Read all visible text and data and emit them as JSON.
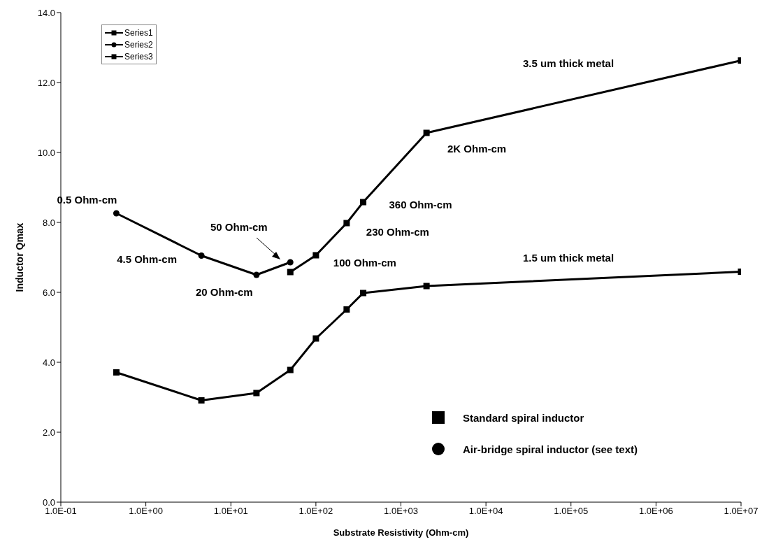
{
  "chart_data": {
    "type": "line",
    "xlabel": "Substrate Resistivity (Ohm-cm)",
    "ylabel": "Inductor Qmax",
    "log": "x",
    "grid": false,
    "legend": "top left",
    "line_style": "solid",
    "xlim": [
      0.1,
      10000000
    ],
    "ylim": [
      0,
      14
    ],
    "xticks": [
      {
        "value": 0.1,
        "label": "1.0E-01"
      },
      {
        "value": 1,
        "label": "1.0E+00"
      },
      {
        "value": 10,
        "label": "1.0E+01"
      },
      {
        "value": 100,
        "label": "1.0E+02"
      },
      {
        "value": 1000,
        "label": "1.0E+03"
      },
      {
        "value": 10000,
        "label": "1.0E+04"
      },
      {
        "value": 100000,
        "label": "1.0E+05"
      },
      {
        "value": 1000000,
        "label": "1.0E+06"
      },
      {
        "value": 10000000,
        "label": "1.0E+07"
      }
    ],
    "yticks": [
      {
        "value": 0,
        "label": "0.0"
      },
      {
        "value": 2,
        "label": "2.0"
      },
      {
        "value": 4,
        "label": "4.0"
      },
      {
        "value": 6,
        "label": "6.0"
      },
      {
        "value": 8,
        "label": "8.0"
      },
      {
        "value": 10,
        "label": "10.0"
      },
      {
        "value": 12,
        "label": "12.0"
      },
      {
        "value": 14,
        "label": "14.0"
      }
    ],
    "series": [
      {
        "name": "Series1",
        "color": "#000000",
        "marker": "square",
        "x": [
          0.45,
          4.5,
          20,
          50,
          100,
          230,
          360,
          2000,
          10000000
        ],
        "values": [
          3.71,
          2.91,
          3.12,
          3.78,
          4.68,
          5.51,
          5.98,
          6.18,
          6.59
        ]
      },
      {
        "name": "Series2",
        "color": "#000000",
        "marker": "circle",
        "x": [
          0.45,
          4.5,
          20,
          50
        ],
        "values": [
          8.26,
          7.05,
          6.5,
          6.86
        ]
      },
      {
        "name": "Series3",
        "color": "#000000",
        "marker": "square",
        "x": [
          50,
          100,
          230,
          360,
          2000,
          10000000
        ],
        "values": [
          6.58,
          7.06,
          7.98,
          8.58,
          10.56,
          12.63
        ]
      }
    ],
    "annotations": [
      {
        "text": "0.5 Ohm-cm",
        "x": 0.45,
        "y": 8.26
      },
      {
        "text": "4.5 Ohm-cm",
        "x": 4.5,
        "y": 7.05
      },
      {
        "text": "20 Ohm-cm",
        "x": 20,
        "y": 6.5
      },
      "50 Ohm-cm",
      {
        "text": "100 Ohm-cm",
        "x": 100,
        "y": 7.06
      },
      {
        "text": "230 Ohm-cm",
        "x": 230,
        "y": 7.98
      },
      {
        "text": "360 Ohm-cm",
        "x": 360,
        "y": 8.58
      },
      {
        "text": "2K Ohm-cm",
        "x": 2000,
        "y": 10.56
      },
      "3.5 um thick metal",
      "1.5 um thick metal",
      "Standard spiral inductor",
      "Air-bridge spiral inductor (see text)"
    ]
  }
}
